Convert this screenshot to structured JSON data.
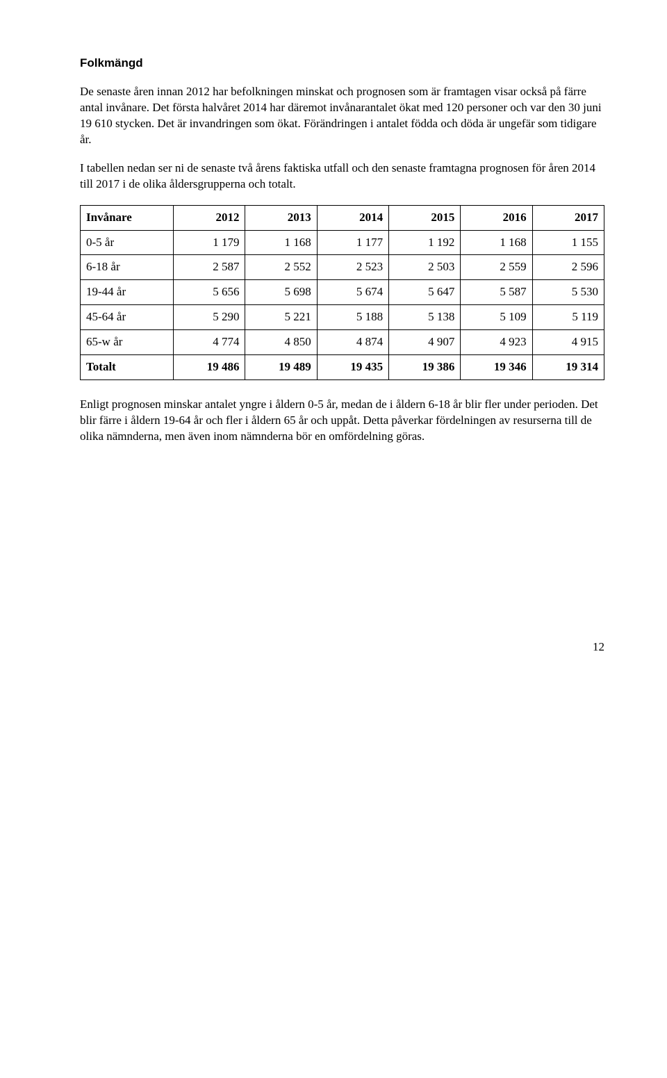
{
  "heading": "Folkmängd",
  "paragraph1": "De senaste åren innan 2012 har befolkningen minskat och prognosen som är framtagen visar också på färre antal invånare. Det första halvåret 2014 har däremot invånarantalet ökat med 120 personer och var den 30 juni 19 610 stycken. Det är invandringen som ökat. Förändringen i antalet födda och döda är ungefär som tidigare år.",
  "paragraph2": "I tabellen nedan ser ni de senaste två årens faktiska utfall och den senaste framtagna prognosen för åren 2014 till 2017 i de olika åldersgrupperna och totalt.",
  "table": {
    "columns": [
      "Invånare",
      "2012",
      "2013",
      "2014",
      "2015",
      "2016",
      "2017"
    ],
    "rows": [
      [
        "0-5 år",
        "1 179",
        "1 168",
        "1 177",
        "1 192",
        "1 168",
        "1 155"
      ],
      [
        "6-18 år",
        "2 587",
        "2 552",
        "2 523",
        "2 503",
        "2 559",
        "2 596"
      ],
      [
        "19-44 år",
        "5 656",
        "5 698",
        "5 674",
        "5 647",
        "5 587",
        "5 530"
      ],
      [
        "45-64 år",
        "5 290",
        "5 221",
        "5 188",
        "5 138",
        "5 109",
        "5 119"
      ],
      [
        "65-w år",
        "4 774",
        "4 850",
        "4 874",
        "4 907",
        "4 923",
        "4 915"
      ]
    ],
    "total_row": [
      "Totalt",
      "19 486",
      "19 489",
      "19 435",
      "19 386",
      "19 346",
      "19 314"
    ]
  },
  "paragraph3": "Enligt prognosen minskar antalet yngre i åldern 0-5 år, medan de i åldern 6-18 år blir fler under perioden. Det blir färre i åldern 19-64 år och fler i åldern 65 år och uppåt. Detta påverkar fördelningen av resurserna till de olika nämnderna, men även inom nämnderna bör en omfördelning göras.",
  "page_number": "12"
}
